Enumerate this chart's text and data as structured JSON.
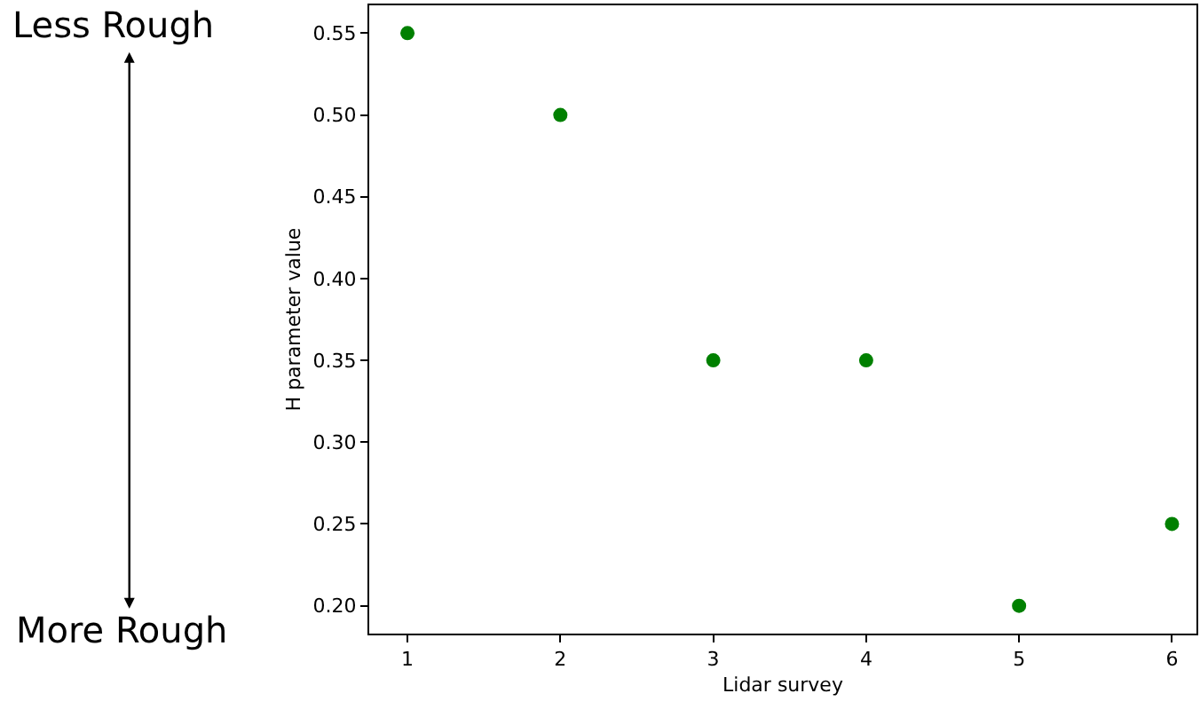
{
  "chart_data": {
    "type": "scatter",
    "xlabel": "Lidar survey",
    "ylabel": "H parameter value",
    "x": [
      1,
      2,
      3,
      4,
      5,
      6
    ],
    "values": [
      0.55,
      0.5,
      0.35,
      0.35,
      0.2,
      0.25
    ],
    "color": "#008000",
    "marker": "circle",
    "legend": false,
    "xlim": [
      0.75,
      6.16
    ],
    "ylim": [
      0.183,
      0.567
    ],
    "xticks": [
      1,
      2,
      3,
      4,
      5,
      6
    ],
    "yticks": [
      {
        "value": 0.2,
        "label": "0.20"
      },
      0.25,
      {
        "value": 0.3,
        "label": "0.30"
      },
      0.35,
      {
        "value": 0.4,
        "label": "0.40"
      },
      0.45,
      {
        "value": 0.5,
        "label": "0.50"
      },
      0.55
    ],
    "annotations": [
      "Less Rough",
      "More Rough"
    ]
  }
}
